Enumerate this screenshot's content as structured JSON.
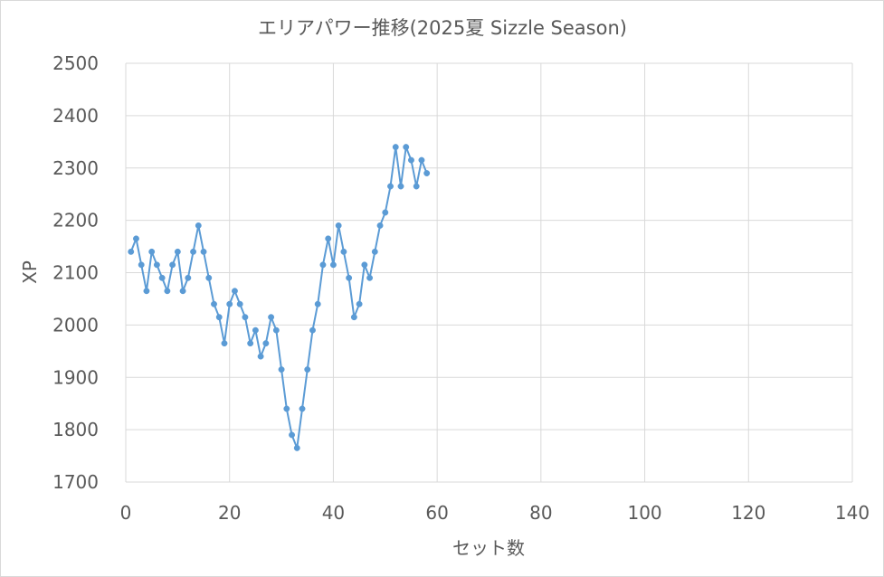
{
  "chart_data": {
    "type": "scatter",
    "title": "エリアパワー推移(2025夏 Sizzle Season)",
    "xlabel": "セット数",
    "ylabel": "XP",
    "xlim": [
      0,
      140
    ],
    "ylim": [
      1700,
      2500
    ],
    "xticks": [
      0,
      20,
      40,
      60,
      80,
      100,
      120,
      140
    ],
    "yticks": [
      1700,
      1800,
      1900,
      2000,
      2100,
      2200,
      2300,
      2400,
      2500
    ],
    "grid": true,
    "legend": "none",
    "series": [
      {
        "color": "#5b9bd5",
        "markers": true,
        "lines": true,
        "points": [
          [
            1,
            2140
          ],
          [
            2,
            2165
          ],
          [
            3,
            2115
          ],
          [
            4,
            2065
          ],
          [
            5,
            2140
          ],
          [
            6,
            2115
          ],
          [
            7,
            2090
          ],
          [
            8,
            2065
          ],
          [
            9,
            2115
          ],
          [
            10,
            2140
          ],
          [
            11,
            2065
          ],
          [
            12,
            2090
          ],
          [
            13,
            2140
          ],
          [
            14,
            2190
          ],
          [
            15,
            2140
          ],
          [
            16,
            2090
          ],
          [
            17,
            2040
          ],
          [
            18,
            2015
          ],
          [
            19,
            1965
          ],
          [
            20,
            2040
          ],
          [
            21,
            2065
          ],
          [
            22,
            2040
          ],
          [
            23,
            2015
          ],
          [
            24,
            1965
          ],
          [
            25,
            1990
          ],
          [
            26,
            1940
          ],
          [
            27,
            1965
          ],
          [
            28,
            2015
          ],
          [
            29,
            1990
          ],
          [
            30,
            1915
          ],
          [
            31,
            1840
          ],
          [
            32,
            1790
          ],
          [
            33,
            1765
          ],
          [
            34,
            1840
          ],
          [
            35,
            1915
          ],
          [
            36,
            1990
          ],
          [
            37,
            2040
          ],
          [
            38,
            2115
          ],
          [
            39,
            2165
          ],
          [
            40,
            2115
          ],
          [
            41,
            2190
          ],
          [
            42,
            2140
          ],
          [
            43,
            2090
          ],
          [
            44,
            2015
          ],
          [
            45,
            2040
          ],
          [
            46,
            2115
          ],
          [
            47,
            2090
          ],
          [
            48,
            2140
          ],
          [
            49,
            2190
          ],
          [
            50,
            2215
          ],
          [
            51,
            2265
          ],
          [
            52,
            2340
          ],
          [
            53,
            2265
          ],
          [
            54,
            2340
          ],
          [
            55,
            2315
          ],
          [
            56,
            2265
          ],
          [
            57,
            2315
          ],
          [
            58,
            2290
          ]
        ]
      }
    ]
  }
}
